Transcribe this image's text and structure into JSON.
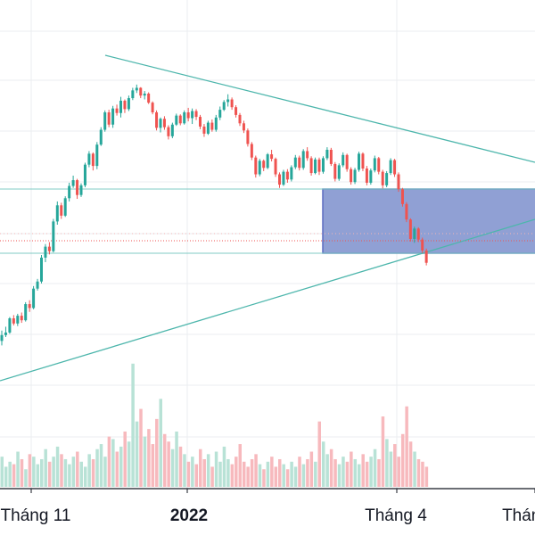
{
  "chart_data": {
    "type": "candlestick",
    "x_ticks": [
      "Tháng 11",
      "2022",
      "Tháng 4",
      "Tháng"
    ],
    "x_tick_bold": [
      false,
      true,
      false,
      false
    ],
    "colors": {
      "up": "#26a69a",
      "down": "#ef5350",
      "vol_up": "#b8e2d6",
      "vol_down": "#f7b9bd",
      "trendline": "#4db6ac",
      "support_line": "#80cbc4",
      "price_line": "#ef5350",
      "rectangle_fill": "#8a9bd2",
      "rectangle_border": "#5c6bc0",
      "grid": "#ebedf0"
    },
    "grid": true,
    "annotations": [
      "descending trendline",
      "ascending trendline",
      "horizontal support lines",
      "rectangle zone"
    ],
    "candles_ohlc": [
      [
        95.2,
        96.8,
        94.5,
        96.1
      ],
      [
        96.1,
        97.4,
        95.8,
        96.5
      ],
      [
        96.5,
        98.9,
        96.3,
        98.7
      ],
      [
        98.7,
        99.2,
        97.6,
        97.9
      ],
      [
        97.9,
        99.4,
        97.5,
        99.1
      ],
      [
        99.1,
        99.6,
        98.0,
        98.4
      ],
      [
        98.4,
        101.2,
        98.2,
        100.9
      ],
      [
        100.9,
        101.5,
        99.7,
        100.3
      ],
      [
        100.3,
        103.7,
        100.1,
        103.3
      ],
      [
        103.3,
        104.8,
        103.0,
        104.4
      ],
      [
        104.4,
        108.5,
        104.1,
        108.1
      ],
      [
        108.1,
        110.2,
        107.4,
        109.8
      ],
      [
        109.8,
        110.5,
        108.6,
        109.1
      ],
      [
        109.1,
        114.1,
        108.9,
        113.7
      ],
      [
        113.7,
        116.8,
        113.2,
        116.2
      ],
      [
        116.2,
        116.6,
        114.1,
        114.6
      ],
      [
        114.6,
        117.6,
        114.4,
        117.3
      ],
      [
        117.3,
        119.7,
        116.8,
        119.2
      ],
      [
        119.2,
        120.8,
        118.9,
        120.1
      ],
      [
        120.1,
        120.3,
        117.2,
        117.8
      ],
      [
        117.8,
        119.6,
        117.5,
        119.3
      ],
      [
        119.3,
        122.8,
        119.0,
        122.5
      ],
      [
        122.5,
        124.6,
        122.1,
        124.2
      ],
      [
        124.2,
        124.4,
        121.6,
        122.3
      ],
      [
        122.3,
        126.0,
        121.8,
        125.6
      ],
      [
        125.6,
        128.3,
        125.4,
        127.9
      ],
      [
        127.9,
        130.9,
        127.6,
        130.6
      ],
      [
        130.6,
        131.0,
        128.3,
        128.7
      ],
      [
        128.7,
        131.6,
        128.2,
        131.2
      ],
      [
        131.2,
        131.8,
        130.1,
        130.5
      ],
      [
        130.5,
        133.0,
        129.8,
        132.4
      ],
      [
        132.4,
        132.6,
        130.5,
        131.1
      ],
      [
        131.1,
        133.2,
        130.8,
        132.8
      ],
      [
        132.8,
        134.4,
        132.5,
        134.0
      ],
      [
        134.0,
        134.9,
        133.6,
        134.4
      ],
      [
        134.4,
        134.5,
        132.8,
        133.2
      ],
      [
        133.2,
        133.9,
        132.6,
        133.5
      ],
      [
        133.5,
        133.7,
        131.9,
        132.1
      ],
      [
        132.1,
        132.3,
        130.3,
        130.6
      ],
      [
        130.6,
        130.9,
        127.8,
        128.2
      ],
      [
        128.2,
        129.8,
        127.5,
        129.6
      ],
      [
        129.6,
        130.0,
        127.9,
        128.3
      ],
      [
        128.3,
        128.6,
        126.4,
        126.9
      ],
      [
        126.9,
        129.0,
        126.6,
        128.7
      ],
      [
        128.7,
        130.4,
        128.5,
        130.1
      ],
      [
        130.1,
        130.3,
        128.6,
        128.9
      ],
      [
        128.9,
        130.9,
        128.7,
        130.6
      ],
      [
        130.6,
        131.3,
        129.2,
        129.7
      ],
      [
        129.7,
        131.2,
        128.8,
        130.8
      ],
      [
        130.8,
        131.1,
        129.4,
        129.9
      ],
      [
        129.9,
        130.2,
        128.0,
        128.4
      ],
      [
        128.4,
        128.8,
        126.8,
        127.3
      ],
      [
        127.3,
        129.3,
        127.1,
        129.0
      ],
      [
        129.0,
        129.5,
        127.6,
        127.9
      ],
      [
        127.9,
        130.2,
        127.6,
        129.8
      ],
      [
        129.8,
        131.5,
        129.4,
        131.0
      ],
      [
        131.0,
        132.5,
        130.8,
        132.2
      ],
      [
        132.2,
        133.4,
        131.5,
        132.6
      ],
      [
        132.6,
        132.9,
        131.0,
        131.4
      ],
      [
        131.4,
        131.7,
        129.8,
        130.2
      ],
      [
        130.2,
        130.5,
        128.5,
        128.9
      ],
      [
        128.9,
        129.3,
        127.4,
        127.8
      ],
      [
        127.8,
        128.1,
        125.3,
        125.7
      ],
      [
        125.7,
        126.0,
        123.2,
        123.6
      ],
      [
        123.6,
        123.9,
        120.5,
        121.0
      ],
      [
        121.0,
        123.4,
        120.7,
        123.1
      ],
      [
        123.1,
        123.3,
        121.5,
        122.0
      ],
      [
        122.0,
        124.3,
        121.8,
        124.1
      ],
      [
        124.1,
        124.8,
        123.0,
        123.4
      ],
      [
        123.4,
        123.6,
        120.6,
        121.0
      ],
      [
        121.0,
        121.3,
        118.9,
        119.4
      ],
      [
        119.4,
        121.7,
        119.2,
        121.4
      ],
      [
        121.4,
        121.8,
        119.7,
        120.2
      ],
      [
        120.2,
        122.4,
        119.9,
        122.1
      ],
      [
        122.1,
        124.0,
        121.8,
        123.6
      ],
      [
        123.6,
        123.9,
        121.6,
        122.0
      ],
      [
        122.0,
        124.9,
        121.7,
        124.6
      ],
      [
        124.6,
        125.2,
        123.1,
        123.5
      ],
      [
        123.5,
        123.8,
        120.8,
        121.2
      ],
      [
        121.2,
        123.6,
        121.0,
        123.3
      ],
      [
        123.3,
        123.6,
        120.9,
        121.4
      ],
      [
        121.4,
        123.8,
        121.1,
        123.5
      ],
      [
        123.5,
        125.2,
        123.2,
        124.8
      ],
      [
        124.8,
        125.1,
        122.3,
        122.6
      ],
      [
        122.6,
        122.9,
        119.9,
        120.3
      ],
      [
        120.3,
        122.7,
        120.0,
        122.4
      ],
      [
        122.4,
        124.4,
        122.1,
        124.0
      ],
      [
        124.0,
        124.2,
        121.4,
        121.8
      ],
      [
        121.8,
        122.1,
        119.4,
        119.8
      ],
      [
        119.8,
        122.0,
        119.5,
        121.7
      ],
      [
        121.7,
        124.5,
        121.4,
        124.2
      ],
      [
        124.2,
        124.4,
        121.5,
        121.9
      ],
      [
        121.9,
        122.3,
        119.3,
        119.7
      ],
      [
        119.7,
        121.9,
        119.4,
        121.6
      ],
      [
        121.6,
        123.9,
        121.3,
        123.5
      ],
      [
        123.5,
        123.7,
        121.0,
        121.4
      ],
      [
        121.4,
        121.7,
        118.8,
        119.3
      ],
      [
        119.3,
        121.5,
        119.0,
        121.2
      ],
      [
        121.2,
        123.5,
        120.9,
        123.2
      ],
      [
        123.2,
        123.4,
        120.6,
        121.0
      ],
      [
        121.0,
        121.3,
        118.3,
        118.7
      ],
      [
        118.7,
        118.9,
        116.0,
        116.4
      ],
      [
        116.4,
        116.7,
        113.6,
        114.0
      ],
      [
        114.0,
        114.2,
        110.6,
        111.0
      ],
      [
        111.0,
        112.9,
        110.4,
        112.6
      ],
      [
        112.6,
        112.8,
        110.5,
        110.9
      ],
      [
        110.9,
        111.2,
        108.8,
        109.2
      ],
      [
        109.2,
        109.5,
        106.9,
        107.3
      ]
    ],
    "volumes": [
      1.2,
      0.8,
      1.0,
      0.9,
      1.4,
      1.1,
      0.7,
      1.3,
      1.2,
      0.9,
      1.1,
      1.5,
      1.0,
      1.2,
      1.6,
      1.3,
      1.1,
      0.9,
      1.2,
      1.4,
      1.0,
      0.8,
      1.3,
      1.1,
      1.5,
      1.7,
      1.2,
      2.0,
      1.9,
      1.4,
      1.6,
      2.2,
      1.8,
      4.9,
      2.6,
      3.1,
      2.0,
      2.3,
      1.7,
      2.7,
      3.5,
      2.1,
      1.8,
      1.5,
      2.2,
      1.6,
      1.3,
      1.0,
      1.2,
      0.9,
      1.5,
      1.1,
      1.3,
      0.8,
      1.4,
      1.0,
      1.6,
      1.1,
      0.9,
      1.2,
      1.7,
      1.0,
      0.8,
      1.1,
      1.3,
      0.9,
      0.7,
      1.0,
      1.2,
      0.8,
      1.1,
      0.9,
      0.7,
      1.0,
      0.8,
      1.2,
      0.9,
      1.1,
      1.4,
      1.0,
      2.6,
      1.8,
      1.3,
      1.5,
      1.1,
      0.9,
      1.2,
      1.0,
      1.4,
      1.1,
      0.9,
      1.3,
      1.0,
      1.2,
      1.5,
      1.1,
      2.8,
      1.9,
      1.4,
      1.7,
      1.2,
      2.1,
      3.2,
      1.8,
      1.4,
      1.1,
      1.0,
      0.8
    ]
  }
}
